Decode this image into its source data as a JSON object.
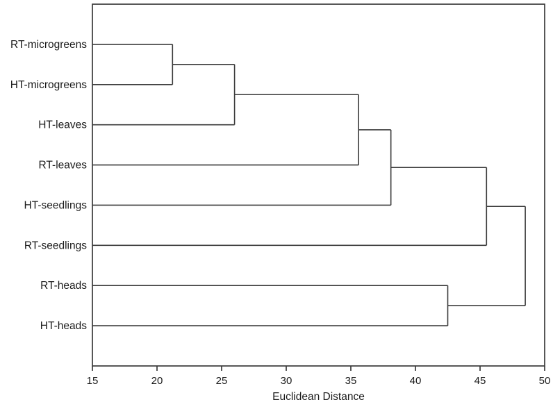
{
  "figure": {
    "background": "#ffffff",
    "line_color": "#3a3a3a",
    "text_color": "#1a1a1a"
  },
  "chart_data": {
    "type": "dendrogram",
    "orientation": "horizontal",
    "title": "",
    "xlabel": "Euclidean Distance",
    "xlim": [
      15,
      50
    ],
    "xticks": [
      15,
      20,
      25,
      30,
      35,
      40,
      45,
      50
    ],
    "grid": false,
    "legend": false,
    "leaves": [
      "RT-microgreens",
      "HT-microgreens",
      "HT-leaves",
      "RT-leaves",
      "HT-seedlings",
      "RT-seedlings",
      "RT-heads",
      "HT-heads"
    ],
    "merges": [
      {
        "id": "m1",
        "children": [
          "RT-microgreens",
          "HT-microgreens"
        ],
        "distance": 21.2
      },
      {
        "id": "m2",
        "children": [
          "m1",
          "HT-leaves"
        ],
        "distance": 26.0
      },
      {
        "id": "m3",
        "children": [
          "m2",
          "RT-leaves"
        ],
        "distance": 35.6
      },
      {
        "id": "m4",
        "children": [
          "m3",
          "HT-seedlings"
        ],
        "distance": 38.1
      },
      {
        "id": "m5",
        "children": [
          "m4",
          "RT-seedlings"
        ],
        "distance": 45.5
      },
      {
        "id": "m6",
        "children": [
          "RT-heads",
          "HT-heads"
        ],
        "distance": 42.5
      },
      {
        "id": "root",
        "children": [
          "m5",
          "m6"
        ],
        "distance": 48.5
      }
    ]
  }
}
